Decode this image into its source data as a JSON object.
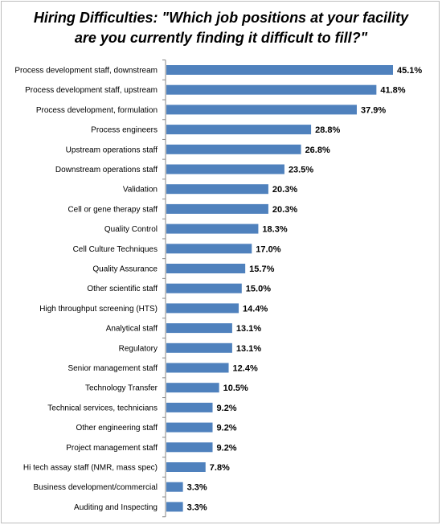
{
  "title_lines": [
    "Hiring Difficulties: \"Which job positions at your facility",
    "are you currently finding it difficult to fill?\""
  ],
  "chart_data": {
    "type": "bar",
    "orientation": "horizontal",
    "title": "Hiring Difficulties: \"Which job positions at your facility are you currently finding it difficult to fill?\"",
    "categories": [
      "Process development staff, downstream",
      "Process development staff, upstream",
      "Process development, formulation",
      "Process engineers",
      "Upstream operations staff",
      "Downstream operations staff",
      "Validation",
      "Cell or gene therapy staff",
      "Quality Control",
      "Cell Culture Techniques",
      "Quality Assurance",
      "Other scientific staff",
      "High throughput screening (HTS)",
      "Analytical staff",
      "Regulatory",
      "Senior management staff",
      "Technology Transfer",
      "Technical services, technicians",
      "Other engineering staff",
      "Project management staff",
      "Hi tech assay staff (NMR, mass spec)",
      "Business development/commercial",
      "Auditing and Inspecting"
    ],
    "values": [
      45.1,
      41.8,
      37.9,
      28.8,
      26.8,
      23.5,
      20.3,
      20.3,
      18.3,
      17.0,
      15.7,
      15.0,
      14.4,
      13.1,
      13.1,
      12.4,
      10.5,
      9.2,
      9.2,
      9.2,
      7.8,
      3.3,
      3.3
    ],
    "value_labels": [
      "45.1%",
      "41.8%",
      "37.9%",
      "28.8%",
      "26.8%",
      "23.5%",
      "20.3%",
      "20.3%",
      "18.3%",
      "17.0%",
      "15.7%",
      "15.0%",
      "14.4%",
      "13.1%",
      "13.1%",
      "12.4%",
      "10.5%",
      "9.2%",
      "9.2%",
      "9.2%",
      "7.8%",
      "3.3%",
      "3.3%"
    ],
    "xlim": [
      0,
      45.1
    ],
    "grid": false,
    "legend": "none",
    "bar_color": "#4f81bd",
    "axis_color": "#868686"
  }
}
